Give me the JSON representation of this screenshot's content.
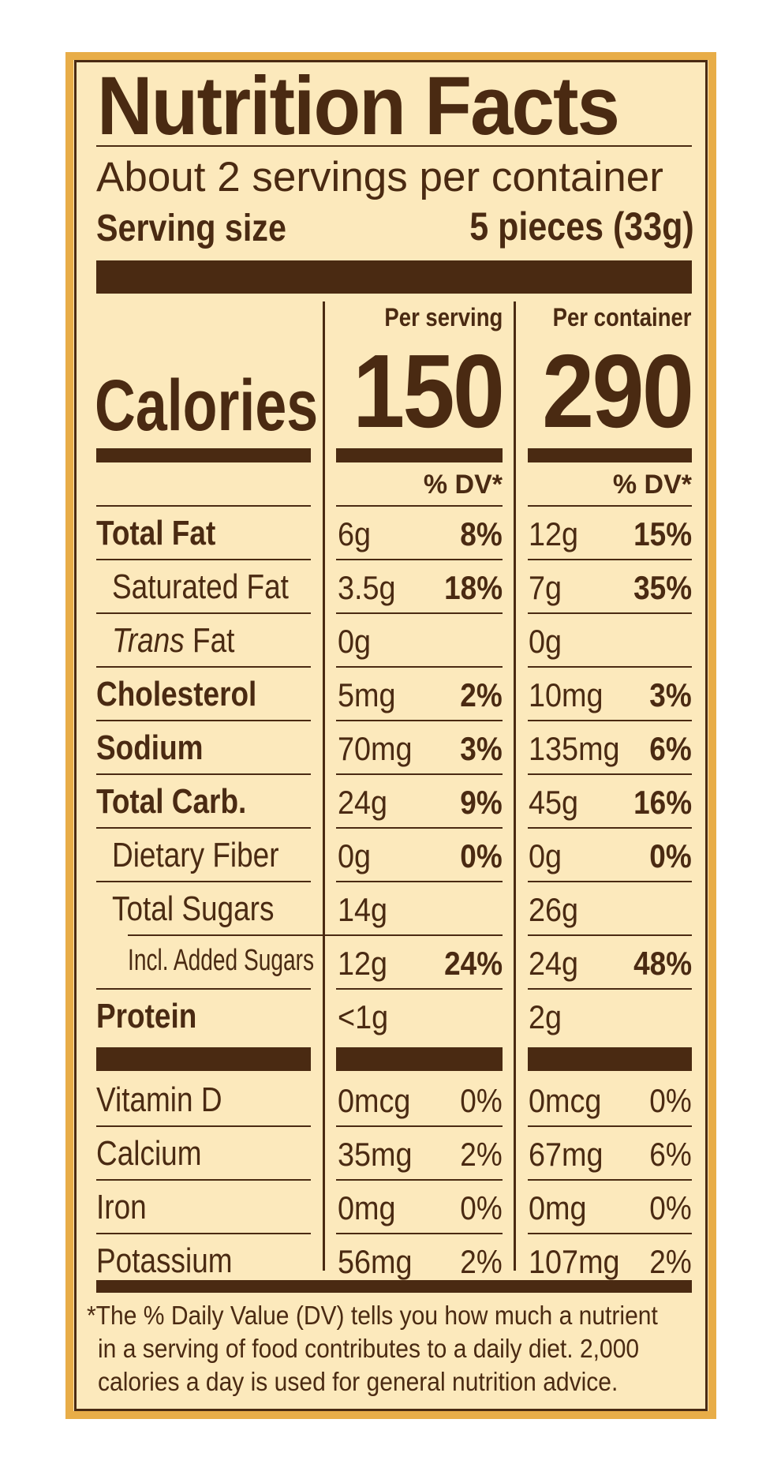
{
  "title": "Nutrition Facts",
  "servings_per_container": "About 2 servings per container",
  "serving_size_label": "Serving size",
  "serving_size_value": "5 pieces (33g)",
  "per_serving_label": "Per serving",
  "per_container_label": "Per container",
  "calories_label": "Calories",
  "calories_per_serving": "150",
  "calories_per_container": "290",
  "dv_header": "% DV*",
  "nutrients": [
    {
      "label": "Total Fat",
      "serving_amount": "6g",
      "serving_dv": "8%",
      "container_amount": "12g",
      "container_dv": "15%"
    },
    {
      "label": "Saturated Fat",
      "serving_amount": "3.5g",
      "serving_dv": "18%",
      "container_amount": "7g",
      "container_dv": "35%"
    },
    {
      "label_italic": "Trans",
      "label": " Fat",
      "serving_amount": "0g",
      "serving_dv": "",
      "container_amount": "0g",
      "container_dv": ""
    },
    {
      "label": "Cholesterol",
      "serving_amount": "5mg",
      "serving_dv": "2%",
      "container_amount": "10mg",
      "container_dv": "3%"
    },
    {
      "label": "Sodium",
      "serving_amount": "70mg",
      "serving_dv": "3%",
      "container_amount": "135mg",
      "container_dv": "6%"
    },
    {
      "label": "Total Carb.",
      "serving_amount": "24g",
      "serving_dv": "9%",
      "container_amount": "45g",
      "container_dv": "16%"
    },
    {
      "label": "Dietary Fiber",
      "serving_amount": "0g",
      "serving_dv": "0%",
      "container_amount": "0g",
      "container_dv": "0%"
    },
    {
      "label": "Total Sugars",
      "serving_amount": "14g",
      "serving_dv": "",
      "container_amount": "26g",
      "container_dv": ""
    },
    {
      "label": "Incl. Added Sugars",
      "serving_amount": "12g",
      "serving_dv": "24%",
      "container_amount": "24g",
      "container_dv": "48%"
    },
    {
      "label": "Protein",
      "serving_amount": "<1g",
      "serving_dv": "",
      "container_amount": "2g",
      "container_dv": ""
    }
  ],
  "vitamins": [
    {
      "label": "Vitamin D",
      "serving_amount": "0mcg",
      "serving_dv": "0%",
      "container_amount": "0mcg",
      "container_dv": "0%"
    },
    {
      "label": "Calcium",
      "serving_amount": "35mg",
      "serving_dv": "2%",
      "container_amount": "67mg",
      "container_dv": "6%"
    },
    {
      "label": "Iron",
      "serving_amount": "0mg",
      "serving_dv": "0%",
      "container_amount": "0mg",
      "container_dv": "0%"
    },
    {
      "label": "Potassium",
      "serving_amount": "56mg",
      "serving_dv": "2%",
      "container_amount": "107mg",
      "container_dv": "2%"
    }
  ],
  "footnote_lines": [
    "*The % Daily Value (DV) tells you how much a nutrient",
    "in a serving of food contributes to a daily diet. 2,000",
    "calories a day is used for general nutrition advice."
  ],
  "colors": {
    "text": "#4a2a12",
    "background": "#fbe8b8",
    "border": "#e8ad48"
  }
}
